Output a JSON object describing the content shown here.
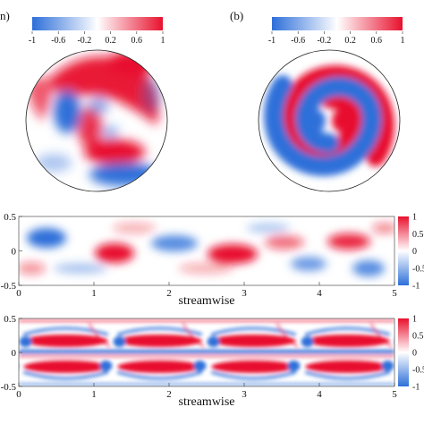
{
  "panels": {
    "a_label": "n)",
    "b_label": "(b)"
  },
  "colorbar_h": {
    "ticks": [
      "-1",
      "-0.6",
      "-0.2",
      "0.2",
      "0.6",
      "1"
    ]
  },
  "colorbar_v": {
    "ticks": [
      "1",
      "0.5",
      "0",
      "-0.5",
      "-1"
    ]
  },
  "colors": {
    "negative": "#2d6fd9",
    "zero": "#ffffff",
    "positive": "#e8112d"
  },
  "chart_data": [
    {
      "type": "heatmap",
      "panel": "a",
      "shape": "circular cross-section",
      "pattern": "irregular two-armed swirl",
      "colorbar_range": [
        -1,
        1
      ]
    },
    {
      "type": "heatmap",
      "panel": "b",
      "shape": "circular cross-section",
      "pattern": "smooth two-armed spiral",
      "colorbar_range": [
        -1,
        1
      ]
    },
    {
      "type": "heatmap",
      "panel": "c",
      "xlabel": "streamwise",
      "xlim": [
        0,
        5
      ],
      "ylim": [
        -0.5,
        0.5
      ],
      "xticks": [
        "0",
        "1",
        "2",
        "3",
        "4",
        "5"
      ],
      "yticks": [
        "0.5",
        "0",
        "-0.5"
      ],
      "colorbar_range": [
        -1,
        1
      ],
      "pattern": "alternating irregular blobs"
    },
    {
      "type": "heatmap",
      "panel": "d",
      "xlabel": "streamwise",
      "xlim": [
        0,
        5
      ],
      "ylim": [
        -0.5,
        0.5
      ],
      "xticks": [
        "0",
        "1",
        "2",
        "3",
        "4",
        "5"
      ],
      "yticks": [
        "0.5",
        "0",
        "-0.5"
      ],
      "colorbar_range": [
        -1,
        1
      ],
      "pattern": "periodic arches, wavelength 1.25"
    }
  ]
}
